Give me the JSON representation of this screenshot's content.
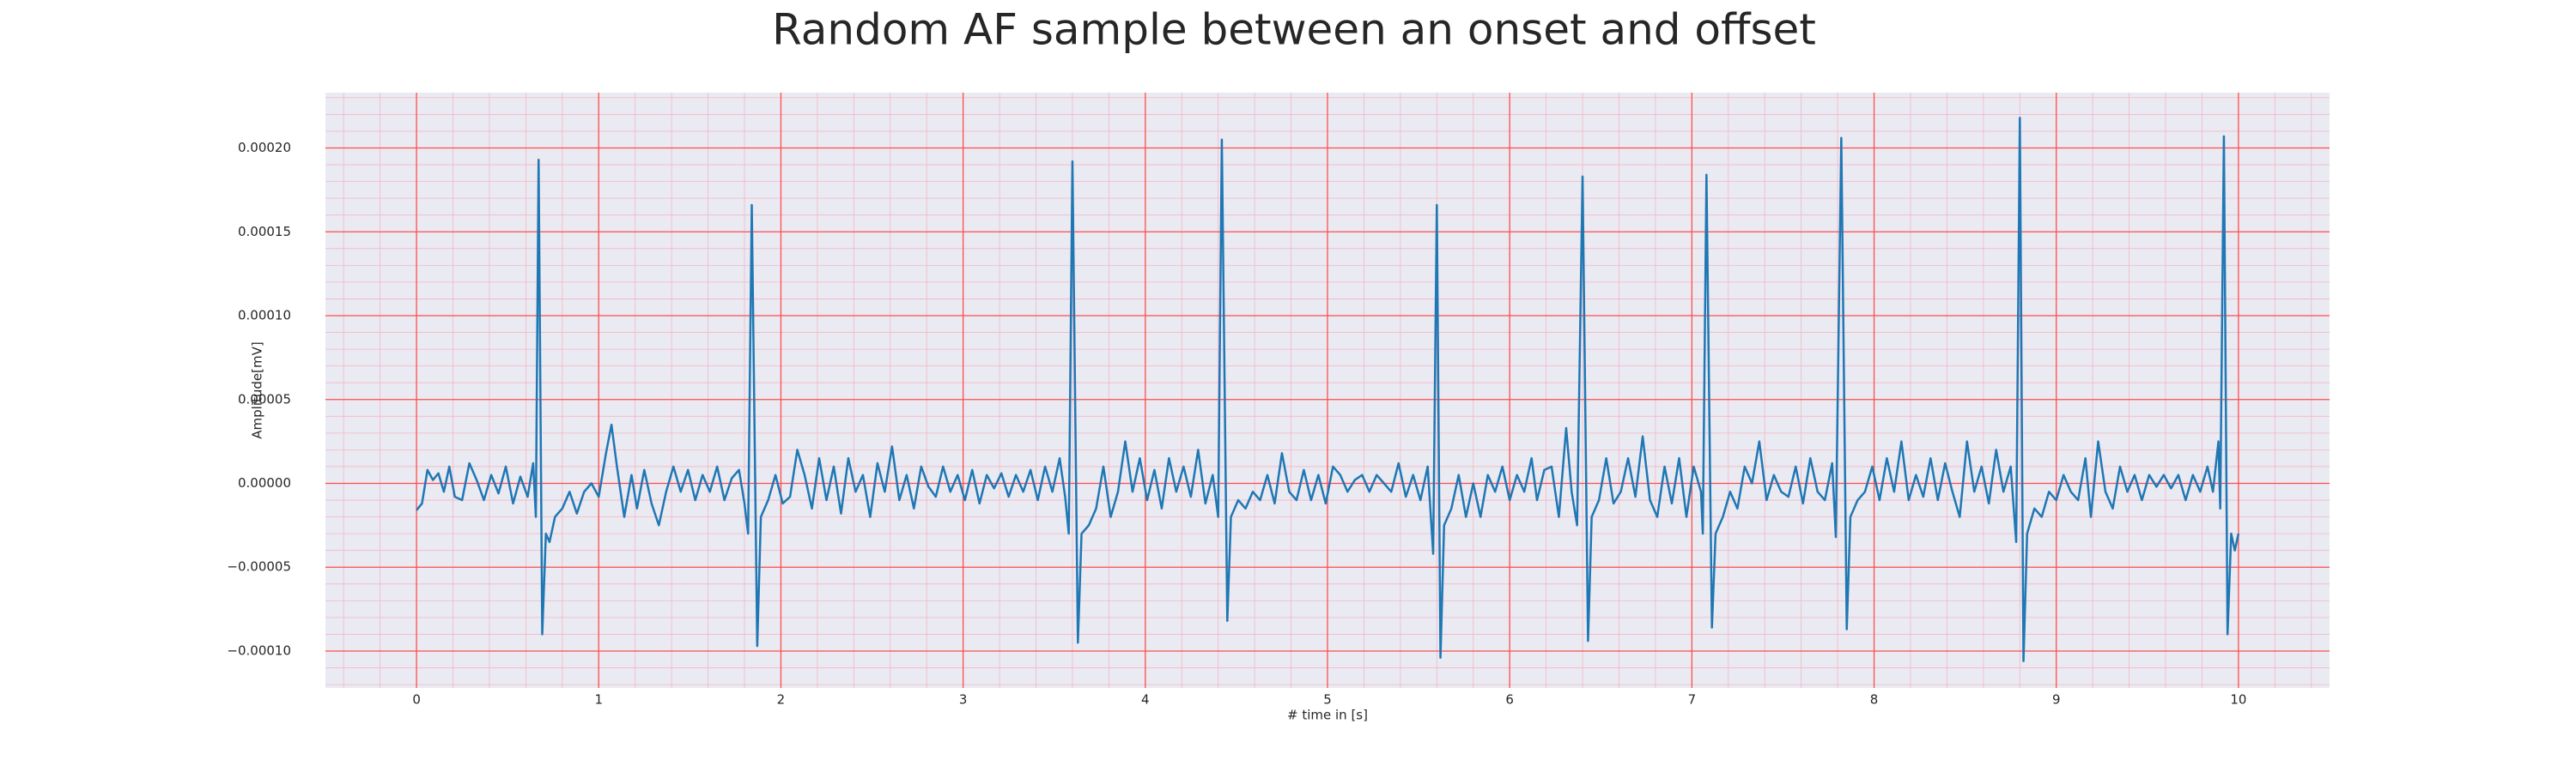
{
  "chart_data": {
    "type": "line",
    "title": "Random AF sample between an onset and offset",
    "xlabel": "# time in [s]",
    "ylabel": "Amplitude[mV]",
    "color": "#1f77b4",
    "grid": true,
    "minor_grid": true,
    "xlim": [
      -0.5,
      10.5
    ],
    "ylim": [
      -0.000122,
      0.000233
    ],
    "xticks": [
      0,
      1,
      2,
      3,
      4,
      5,
      6,
      7,
      8,
      9,
      10
    ],
    "yticks": [
      {
        "value": -0.0001,
        "label": "−0.00010"
      },
      {
        "value": -5e-05,
        "label": "−0.00005"
      },
      {
        "value": 0,
        "label": "0.00000"
      },
      {
        "value": 5e-05,
        "label": "0.00005"
      },
      {
        "value": 0.0001,
        "label": "0.00010"
      },
      {
        "value": 0.00015,
        "label": "0.00015"
      },
      {
        "value": 0.0002,
        "label": "0.00020"
      }
    ],
    "x": [
      0.0,
      0.03,
      0.06,
      0.09,
      0.12,
      0.15,
      0.18,
      0.21,
      0.25,
      0.29,
      0.33,
      0.37,
      0.41,
      0.45,
      0.49,
      0.53,
      0.57,
      0.61,
      0.64,
      0.655,
      0.67,
      0.69,
      0.71,
      0.73,
      0.76,
      0.8,
      0.84,
      0.88,
      0.92,
      0.96,
      1.0,
      1.04,
      1.07,
      1.1,
      1.14,
      1.18,
      1.21,
      1.25,
      1.29,
      1.33,
      1.37,
      1.41,
      1.45,
      1.49,
      1.53,
      1.57,
      1.61,
      1.65,
      1.69,
      1.73,
      1.77,
      1.8,
      1.82,
      1.84,
      1.87,
      1.89,
      1.93,
      1.97,
      2.01,
      2.05,
      2.09,
      2.13,
      2.17,
      2.21,
      2.25,
      2.29,
      2.33,
      2.37,
      2.41,
      2.45,
      2.49,
      2.53,
      2.57,
      2.61,
      2.65,
      2.69,
      2.73,
      2.77,
      2.81,
      2.85,
      2.89,
      2.93,
      2.97,
      3.01,
      3.05,
      3.09,
      3.13,
      3.17,
      3.21,
      3.25,
      3.29,
      3.33,
      3.37,
      3.41,
      3.45,
      3.49,
      3.53,
      3.56,
      3.58,
      3.6,
      3.63,
      3.65,
      3.69,
      3.73,
      3.77,
      3.81,
      3.85,
      3.89,
      3.93,
      3.97,
      4.01,
      4.05,
      4.09,
      4.13,
      4.17,
      4.21,
      4.25,
      4.29,
      4.33,
      4.37,
      4.4,
      4.42,
      4.45,
      4.47,
      4.51,
      4.55,
      4.59,
      4.63,
      4.67,
      4.71,
      4.75,
      4.79,
      4.83,
      4.87,
      4.91,
      4.95,
      4.99,
      5.03,
      5.07,
      5.11,
      5.15,
      5.19,
      5.23,
      5.27,
      5.31,
      5.35,
      5.39,
      5.43,
      5.47,
      5.51,
      5.55,
      5.58,
      5.6,
      5.62,
      5.64,
      5.68,
      5.72,
      5.76,
      5.8,
      5.84,
      5.88,
      5.92,
      5.96,
      6.0,
      6.04,
      6.08,
      6.12,
      6.15,
      6.19,
      6.23,
      6.27,
      6.31,
      6.34,
      6.37,
      6.4,
      6.43,
      6.45,
      6.49,
      6.53,
      6.57,
      6.61,
      6.65,
      6.69,
      6.73,
      6.77,
      6.81,
      6.85,
      6.89,
      6.93,
      6.97,
      7.01,
      7.05,
      7.06,
      7.08,
      7.11,
      7.13,
      7.17,
      7.21,
      7.25,
      7.29,
      7.33,
      7.37,
      7.41,
      7.45,
      7.49,
      7.53,
      7.57,
      7.61,
      7.65,
      7.69,
      7.73,
      7.77,
      7.79,
      7.82,
      7.85,
      7.87,
      7.91,
      7.95,
      7.99,
      8.03,
      8.07,
      8.11,
      8.15,
      8.19,
      8.23,
      8.27,
      8.31,
      8.35,
      8.39,
      8.43,
      8.47,
      8.51,
      8.55,
      8.59,
      8.63,
      8.67,
      8.71,
      8.75,
      8.78,
      8.8,
      8.82,
      8.84,
      8.88,
      8.92,
      8.96,
      9.0,
      9.04,
      9.08,
      9.12,
      9.16,
      9.19,
      9.23,
      9.27,
      9.31,
      9.35,
      9.39,
      9.43,
      9.47,
      9.51,
      9.55,
      9.59,
      9.63,
      9.67,
      9.71,
      9.75,
      9.79,
      9.83,
      9.86,
      9.89,
      9.9,
      9.92,
      9.94,
      9.96,
      9.98,
      10.0
    ],
    "values": [
      -1.6e-05,
      -1.2e-05,
      8e-06,
      2e-06,
      6e-06,
      -5e-06,
      1e-05,
      -8e-06,
      -1e-05,
      1.2e-05,
      2e-06,
      -1e-05,
      5e-06,
      -6e-06,
      1e-05,
      -1.2e-05,
      4e-06,
      -8e-06,
      1.2e-05,
      -2e-05,
      0.000193,
      -9e-05,
      -3e-05,
      -3.5e-05,
      -2e-05,
      -1.5e-05,
      -5e-06,
      -1.8e-05,
      -5e-06,
      0,
      -8e-06,
      1.8e-05,
      3.5e-05,
      1e-05,
      -2e-05,
      5e-06,
      -1.5e-05,
      8e-06,
      -1.2e-05,
      -2.5e-05,
      -5e-06,
      1e-05,
      -5e-06,
      8e-06,
      -1e-05,
      5e-06,
      -5e-06,
      1e-05,
      -1e-05,
      3e-06,
      8e-06,
      -1.2e-05,
      -3e-05,
      0.000166,
      -9.7e-05,
      -2e-05,
      -1e-05,
      5e-06,
      -1.2e-05,
      -8e-06,
      2e-05,
      5e-06,
      -1.5e-05,
      1.5e-05,
      -1e-05,
      1e-05,
      -1.8e-05,
      1.5e-05,
      -5e-06,
      5e-06,
      -2e-05,
      1.2e-05,
      -5e-06,
      2.2e-05,
      -1e-05,
      5e-06,
      -1.5e-05,
      1e-05,
      -2e-06,
      -8e-06,
      1e-05,
      -5e-06,
      5e-06,
      -1e-05,
      8e-06,
      -1.2e-05,
      5e-06,
      -3e-06,
      6e-06,
      -8e-06,
      5e-06,
      -5e-06,
      8e-06,
      -1e-05,
      1e-05,
      -5e-06,
      1.5e-05,
      -8e-06,
      -3e-05,
      0.000192,
      -9.5e-05,
      -3e-05,
      -2.5e-05,
      -1.5e-05,
      1e-05,
      -2e-05,
      -5e-06,
      2.5e-05,
      -5e-06,
      1.5e-05,
      -1e-05,
      8e-06,
      -1.5e-05,
      1.5e-05,
      -5e-06,
      1e-05,
      -8e-06,
      2e-05,
      -1.2e-05,
      5e-06,
      -2e-05,
      0.000205,
      -8.2e-05,
      -2e-05,
      -1e-05,
      -1.5e-05,
      -5e-06,
      -1e-05,
      5e-06,
      -1.2e-05,
      1.8e-05,
      -5e-06,
      -1e-05,
      8e-06,
      -1e-05,
      5e-06,
      -1.2e-05,
      1e-05,
      5e-06,
      -5e-06,
      2e-06,
      5e-06,
      -5e-06,
      5e-06,
      0,
      -5e-06,
      1.2e-05,
      -8e-06,
      5e-06,
      -1e-05,
      1e-05,
      -4.2e-05,
      0.000166,
      -0.000104,
      -2.5e-05,
      -1.5e-05,
      5e-06,
      -2e-05,
      0,
      -2e-05,
      5e-06,
      -5e-06,
      1e-05,
      -1e-05,
      5e-06,
      -5e-06,
      1.5e-05,
      -1e-05,
      8e-06,
      1e-05,
      -2e-05,
      3.3e-05,
      -5e-06,
      -2.5e-05,
      0.000183,
      -9.4e-05,
      -2e-05,
      -1e-05,
      1.5e-05,
      -1.2e-05,
      -5e-06,
      1.5e-05,
      -8e-06,
      2.8e-05,
      -1e-05,
      -2e-05,
      1e-05,
      -1.2e-05,
      1.5e-05,
      -2e-05,
      1e-05,
      -5e-06,
      -3e-05,
      0.000184,
      -8.6e-05,
      -3e-05,
      -2e-05,
      -5e-06,
      -1.5e-05,
      1e-05,
      0,
      2.5e-05,
      -1e-05,
      5e-06,
      -5e-06,
      -8e-06,
      1e-05,
      -1.2e-05,
      1.5e-05,
      -5e-06,
      -1e-05,
      1.2e-05,
      -3.2e-05,
      0.000206,
      -8.7e-05,
      -2e-05,
      -1e-05,
      -5e-06,
      1e-05,
      -1e-05,
      1.5e-05,
      -5e-06,
      2.5e-05,
      -1e-05,
      5e-06,
      -8e-06,
      1.5e-05,
      -1e-05,
      1.2e-05,
      -5e-06,
      -2e-05,
      2.5e-05,
      -5e-06,
      1e-05,
      -1.2e-05,
      2e-05,
      -5e-06,
      1e-05,
      -3.5e-05,
      0.000218,
      -0.000106,
      -3e-05,
      -1.5e-05,
      -2e-05,
      -5e-06,
      -1e-05,
      5e-06,
      -5e-06,
      -1e-05,
      1.5e-05,
      -2e-05,
      2.5e-05,
      -5e-06,
      -1.5e-05,
      1e-05,
      -5e-06,
      5e-06,
      -1e-05,
      5e-06,
      -2e-06,
      5e-06,
      -3e-06,
      5e-06,
      -1e-05,
      5e-06,
      -5e-06,
      1e-05,
      -5e-06,
      2.5e-05,
      -1.5e-05,
      0.000207,
      -9e-05,
      -3e-05,
      -4e-05,
      -3e-05
    ]
  }
}
